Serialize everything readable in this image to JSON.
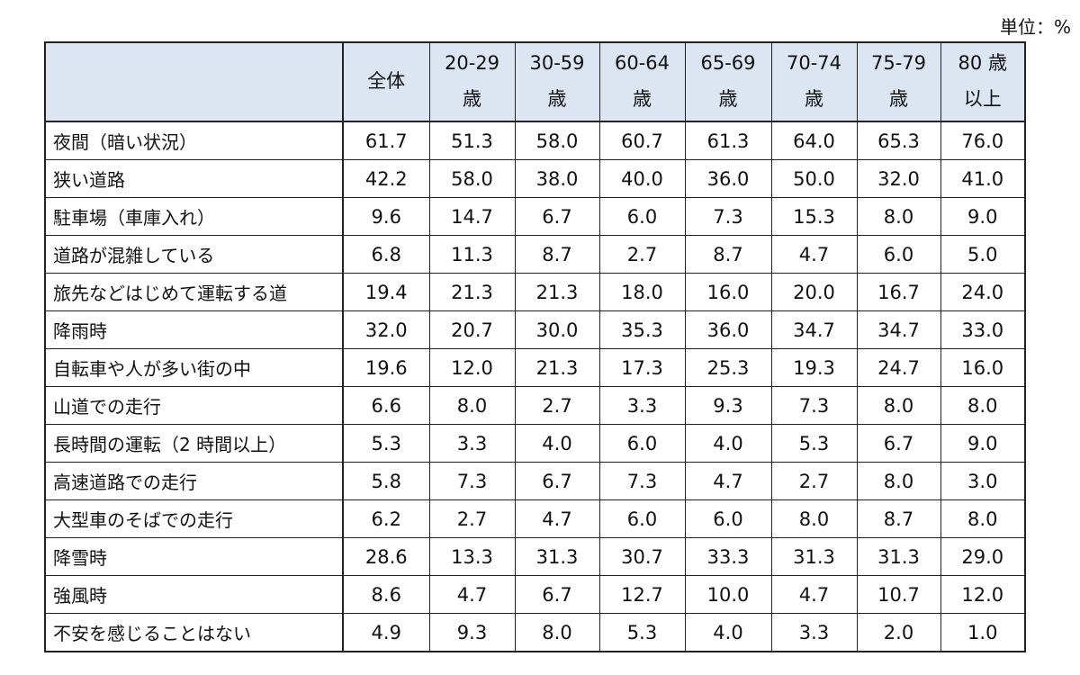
{
  "unit_label": "単位：%",
  "chart_data": {
    "type": "table",
    "columns": [
      {
        "line1": "全体",
        "line2": ""
      },
      {
        "line1": "20-29",
        "line2": "歳"
      },
      {
        "line1": "30-59",
        "line2": "歳"
      },
      {
        "line1": "60-64",
        "line2": "歳"
      },
      {
        "line1": "65-69",
        "line2": "歳"
      },
      {
        "line1": "70-74",
        "line2": "歳"
      },
      {
        "line1": "75-79",
        "line2": "歳"
      },
      {
        "line1": "80 歳",
        "line2": "以上"
      }
    ],
    "rows": [
      {
        "label": "夜間（暗い状況）",
        "values": [
          "61.7",
          "51.3",
          "58.0",
          "60.7",
          "61.3",
          "64.0",
          "65.3",
          "76.0"
        ]
      },
      {
        "label": "狭い道路",
        "values": [
          "42.2",
          "58.0",
          "38.0",
          "40.0",
          "36.0",
          "50.0",
          "32.0",
          "41.0"
        ]
      },
      {
        "label": "駐車場（車庫入れ）",
        "values": [
          "9.6",
          "14.7",
          "6.7",
          "6.0",
          "7.3",
          "15.3",
          "8.0",
          "9.0"
        ]
      },
      {
        "label": "道路が混雑している",
        "values": [
          "6.8",
          "11.3",
          "8.7",
          "2.7",
          "8.7",
          "4.7",
          "6.0",
          "5.0"
        ]
      },
      {
        "label": "旅先などはじめて運転する道",
        "values": [
          "19.4",
          "21.3",
          "21.3",
          "18.0",
          "16.0",
          "20.0",
          "16.7",
          "24.0"
        ]
      },
      {
        "label": "降雨時",
        "values": [
          "32.0",
          "20.7",
          "30.0",
          "35.3",
          "36.0",
          "34.7",
          "34.7",
          "33.0"
        ]
      },
      {
        "label": "自転車や人が多い街の中",
        "values": [
          "19.6",
          "12.0",
          "21.3",
          "17.3",
          "25.3",
          "19.3",
          "24.7",
          "16.0"
        ]
      },
      {
        "label": "山道での走行",
        "values": [
          "6.6",
          "8.0",
          "2.7",
          "3.3",
          "9.3",
          "7.3",
          "8.0",
          "8.0"
        ]
      },
      {
        "label": "長時間の運転（2 時間以上）",
        "values": [
          "5.3",
          "3.3",
          "4.0",
          "6.0",
          "4.0",
          "5.3",
          "6.7",
          "9.0"
        ]
      },
      {
        "label": "高速道路での走行",
        "values": [
          "5.8",
          "7.3",
          "6.7",
          "7.3",
          "4.7",
          "2.7",
          "8.0",
          "3.0"
        ]
      },
      {
        "label": "大型車のそばでの走行",
        "values": [
          "6.2",
          "2.7",
          "4.7",
          "6.0",
          "6.0",
          "8.0",
          "8.7",
          "8.0"
        ]
      },
      {
        "label": "降雪時",
        "values": [
          "28.6",
          "13.3",
          "31.3",
          "30.7",
          "33.3",
          "31.3",
          "31.3",
          "29.0"
        ]
      },
      {
        "label": "強風時",
        "values": [
          "8.6",
          "4.7",
          "6.7",
          "12.7",
          "10.0",
          "4.7",
          "10.7",
          "12.0"
        ]
      },
      {
        "label": "不安を感じることはない",
        "values": [
          "4.9",
          "9.3",
          "8.0",
          "5.3",
          "4.0",
          "3.3",
          "2.0",
          "1.0"
        ]
      }
    ]
  }
}
